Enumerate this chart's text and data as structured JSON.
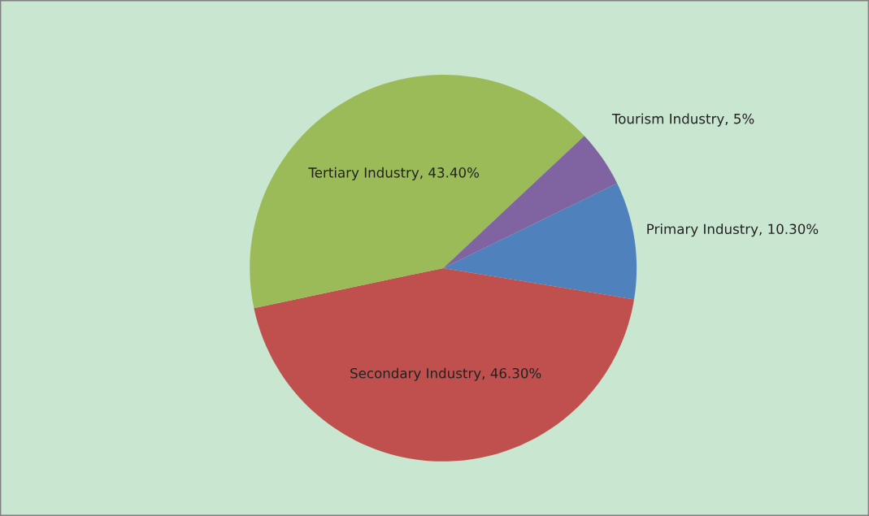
{
  "chart_data": {
    "type": "pie",
    "categories": [
      "Primary Industry",
      "Secondary Industry",
      "Tertiary Industry",
      "Tourism Industry"
    ],
    "values": [
      10.3,
      46.3,
      43.4,
      5
    ],
    "value_labels": [
      "10.30%",
      "46.30%",
      "43.40%",
      "5%"
    ],
    "colors": [
      "#4f81bd",
      "#c0504d",
      "#9bbb59",
      "#8064a2"
    ],
    "legend": false
  }
}
